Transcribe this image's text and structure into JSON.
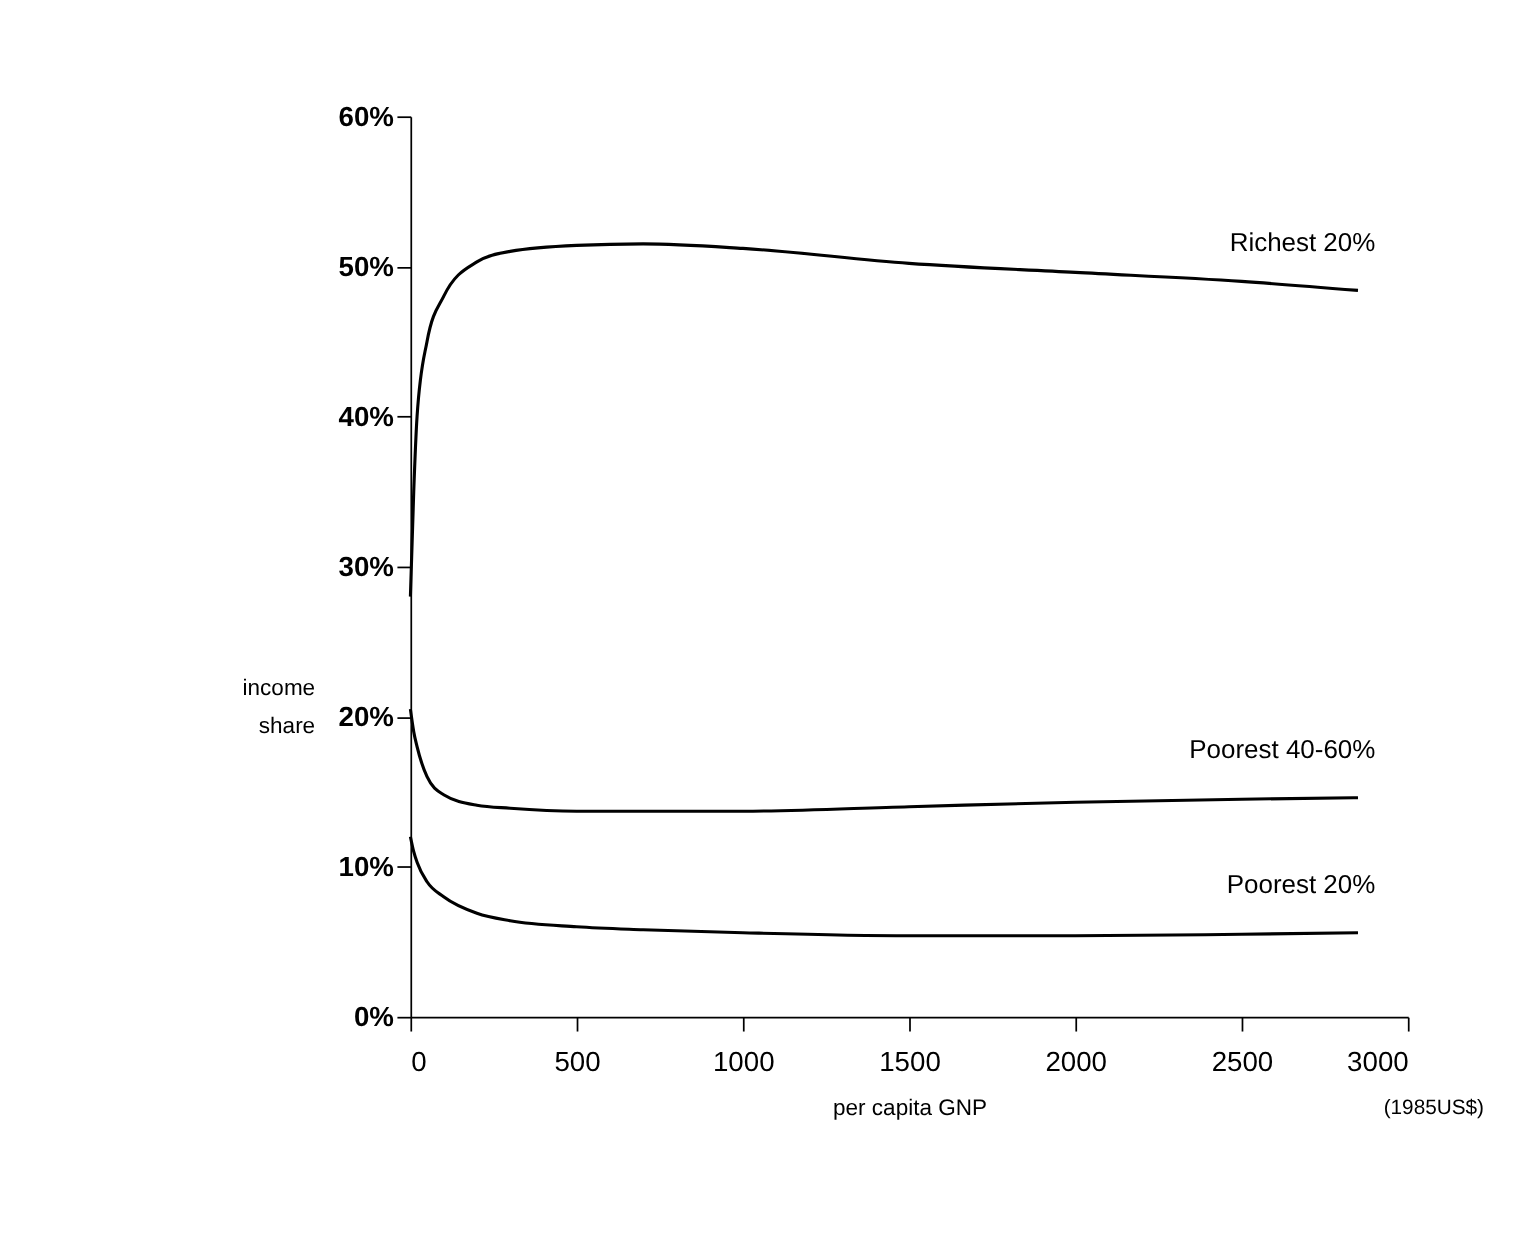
{
  "chart_data": {
    "type": "line",
    "xlabel": "per capita GNP",
    "ylabel": "income share",
    "annotations": [
      "(1985US$)"
    ],
    "xlim": [
      0,
      3000
    ],
    "xticks": [
      0,
      500,
      1000,
      1500,
      2000,
      2500,
      3000
    ],
    "ylim": [
      0,
      60
    ],
    "yticks": [
      {
        "value": 0,
        "label": "0%"
      },
      {
        "value": 10,
        "label": "10%"
      },
      {
        "value": 20,
        "label": "20%"
      },
      {
        "value": 30,
        "label": "30%"
      },
      {
        "value": 40,
        "label": "40%"
      },
      {
        "value": 50,
        "label": "50%"
      },
      {
        "value": 60,
        "label": "60%"
      }
    ],
    "grid": false,
    "legend": false,
    "marker": "none",
    "line_style": "solid",
    "x": [
      0,
      10,
      20,
      50,
      100,
      200,
      300,
      500,
      700,
      1000,
      1500,
      2000,
      2500,
      2850
    ],
    "series": [
      {
        "name": "Richest 20%",
        "color": "#000000",
        "values": [
          28,
          35,
          40,
          45,
          48,
          50.3,
          51,
          51.4,
          51.5,
          51.2,
          50.2,
          49.6,
          49,
          48.4
        ]
      },
      {
        "name": "Poorest  40-60%",
        "color": "#000000",
        "values": [
          20.5,
          19,
          18,
          16,
          14.8,
          14.1,
          13.9,
          13.7,
          13.7,
          13.7,
          14,
          14.3,
          14.5,
          14.6
        ]
      },
      {
        "name": "Poorest  20%",
        "color": "#000000",
        "values": [
          12,
          11,
          10.3,
          9,
          8,
          6.9,
          6.4,
          6,
          5.8,
          5.6,
          5.4,
          5.4,
          5.5,
          5.6
        ]
      }
    ]
  }
}
